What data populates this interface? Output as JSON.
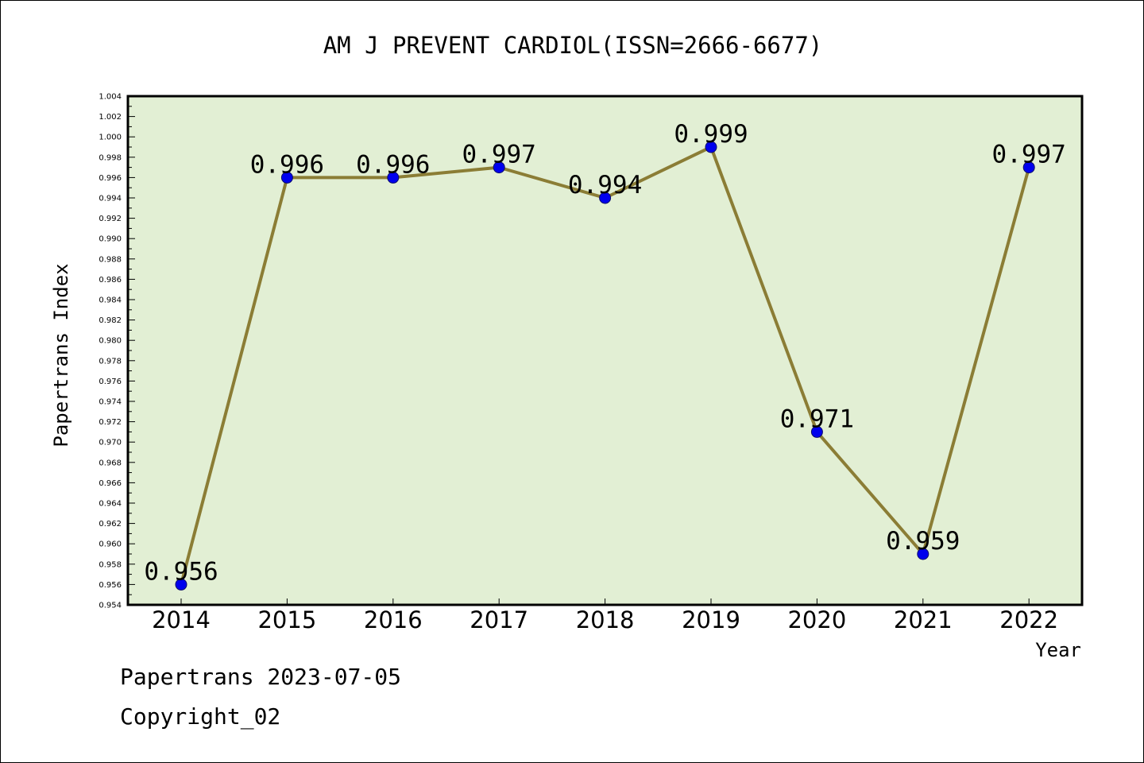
{
  "chart_data": {
    "type": "line",
    "title": "AM J PREVENT CARDIOL(ISSN=2666-6677)",
    "xlabel": "Year",
    "ylabel": "Papertrans Index",
    "categories": [
      "2014",
      "2015",
      "2016",
      "2017",
      "2018",
      "2019",
      "2020",
      "2021",
      "2022"
    ],
    "series": [
      {
        "values": [
          0.956,
          0.996,
          0.996,
          0.997,
          0.994,
          0.999,
          0.971,
          0.959,
          0.997
        ],
        "data_labels": [
          "0.956",
          "0.996",
          "0.996",
          "0.997",
          "0.994",
          "0.999",
          "0.971",
          "0.959",
          "0.997"
        ]
      }
    ],
    "ylim": [
      0.954,
      1.004
    ],
    "y_ticks": [
      "0.954",
      "0.956",
      "0.958",
      "0.960",
      "0.962",
      "0.964",
      "0.966",
      "0.968",
      "0.970",
      "0.972",
      "0.974",
      "0.976",
      "0.978",
      "0.980",
      "0.982",
      "0.984",
      "0.986",
      "0.988",
      "0.990",
      "0.992",
      "0.994",
      "0.996",
      "0.998",
      "1.000",
      "1.002",
      "1.004"
    ],
    "grid": false,
    "legend": "none",
    "colors": {
      "plot_background": "#e2efd4",
      "line": "#8b7d35",
      "marker": "#0000ee",
      "axis": "#000000"
    }
  },
  "footer": {
    "line1": "Papertrans 2023-07-05",
    "line2": "Copyright_02"
  }
}
